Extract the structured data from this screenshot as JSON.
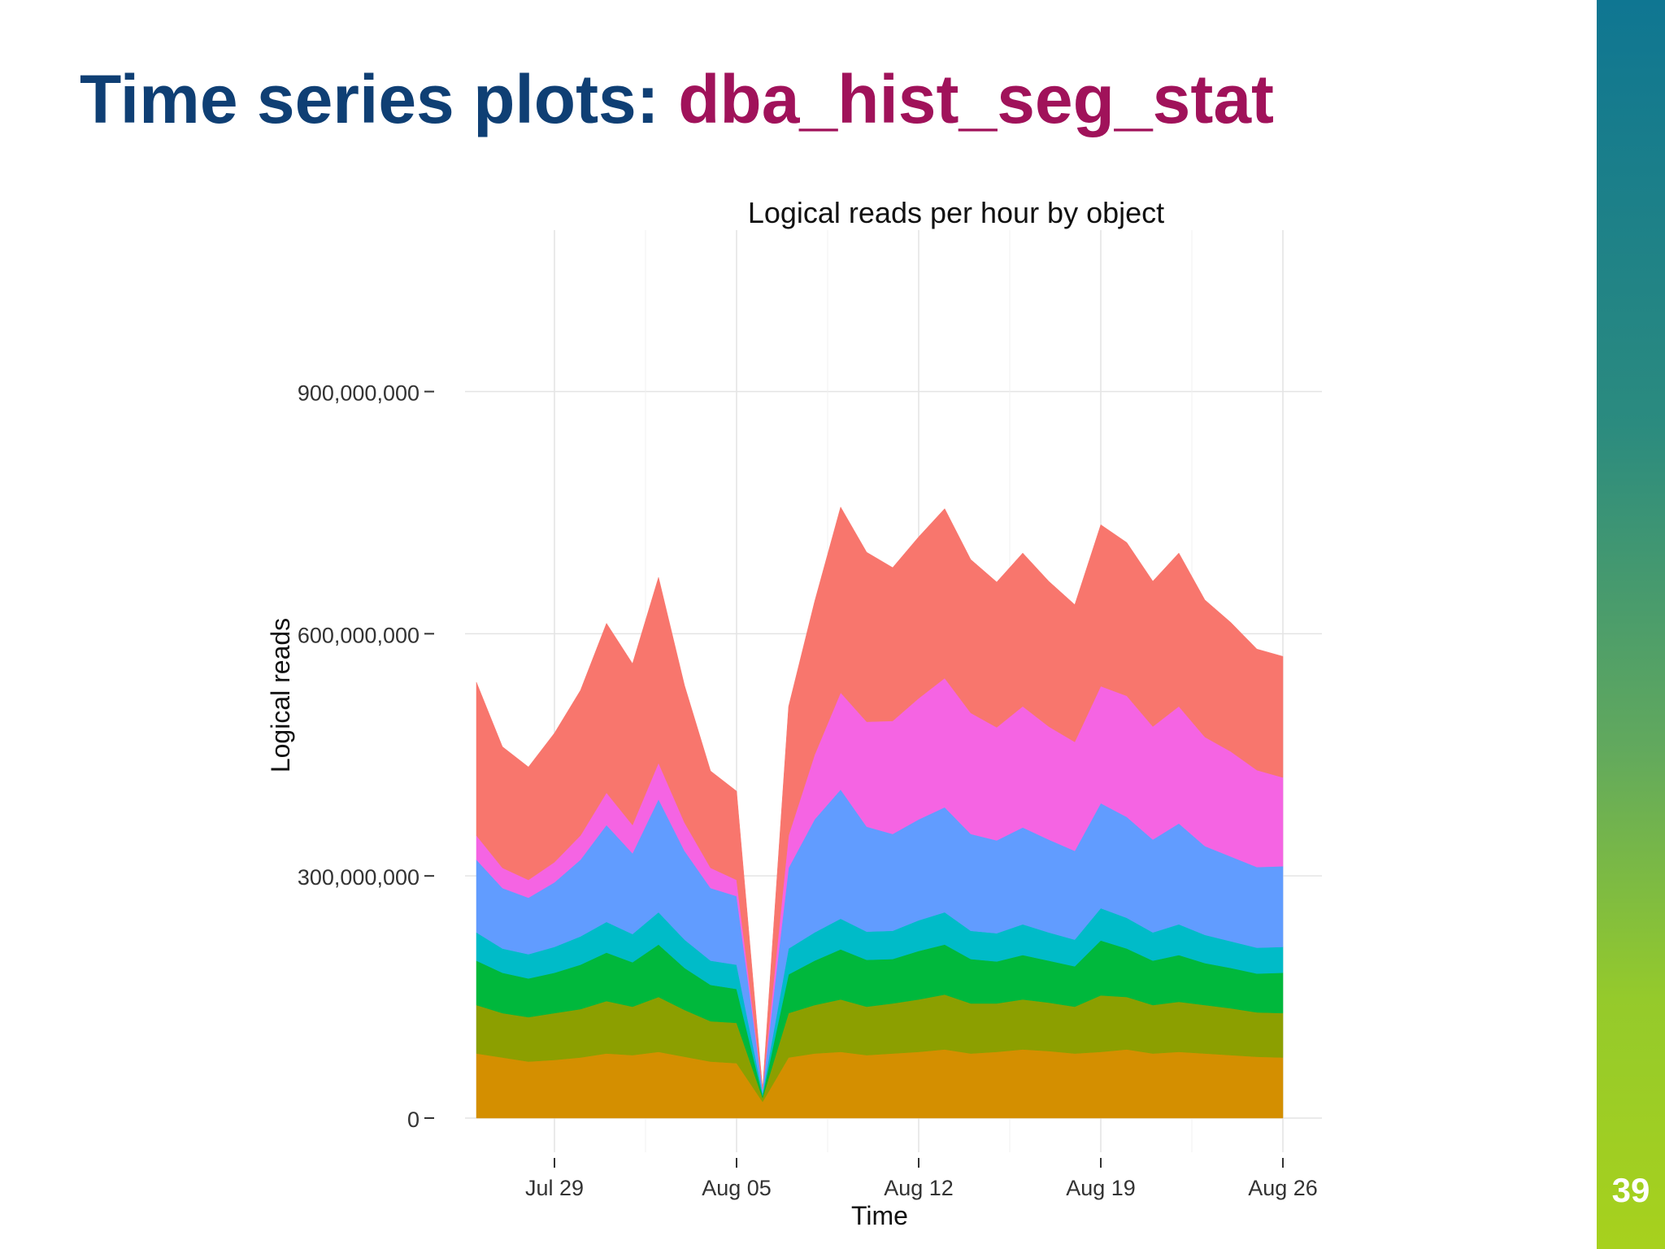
{
  "slide": {
    "title_main": "Time series plots: ",
    "title_highlight": "dba_hist_seg_stat",
    "page_number": "39"
  },
  "colors": {
    "title_main": "#0f3f74",
    "title_highlight": "#a0125a",
    "side_bar_top": "#0f7692",
    "side_bar_bottom": "#a7d11d"
  },
  "chart_data": {
    "type": "area",
    "title": "Logical reads per hour by object",
    "xlabel": "Time",
    "ylabel": "Logical reads",
    "stacked": true,
    "grid": true,
    "legend": "none",
    "x_ticks": [
      "Jul 29",
      "Aug 05",
      "Aug 12",
      "Aug 19",
      "Aug 26"
    ],
    "y_ticks": [
      "0",
      "300,000,000",
      "600,000,000",
      "900,000,000"
    ],
    "ylim": [
      0,
      1100000000
    ],
    "x": [
      "Jul 26",
      "Jul 27",
      "Jul 28",
      "Jul 29",
      "Jul 30",
      "Jul 31",
      "Aug 01",
      "Aug 02",
      "Aug 03",
      "Aug 04",
      "Aug 05",
      "Aug 06",
      "Aug 07",
      "Aug 08",
      "Aug 09",
      "Aug 10",
      "Aug 11",
      "Aug 12",
      "Aug 13",
      "Aug 14",
      "Aug 15",
      "Aug 16",
      "Aug 17",
      "Aug 18",
      "Aug 19",
      "Aug 20",
      "Aug 21",
      "Aug 22",
      "Aug 23",
      "Aug 24",
      "Aug 25",
      "Aug 26"
    ],
    "series": [
      {
        "color": "#d48f00",
        "values": [
          80000000,
          75000000,
          70000000,
          72000000,
          75000000,
          80000000,
          78000000,
          82000000,
          76000000,
          70000000,
          68000000,
          20000000,
          75000000,
          80000000,
          82000000,
          78000000,
          80000000,
          82000000,
          85000000,
          80000000,
          82000000,
          85000000,
          83000000,
          80000000,
          82000000,
          85000000,
          80000000,
          82000000,
          80000000,
          78000000,
          76000000,
          75000000
        ]
      },
      {
        "color": "#8c9f00",
        "values": [
          60000000,
          55000000,
          55000000,
          58000000,
          60000000,
          65000000,
          60000000,
          68000000,
          58000000,
          50000000,
          50000000,
          5000000,
          55000000,
          60000000,
          65000000,
          60000000,
          62000000,
          65000000,
          68000000,
          62000000,
          60000000,
          62000000,
          60000000,
          58000000,
          70000000,
          65000000,
          60000000,
          62000000,
          60000000,
          58000000,
          55000000,
          55000000
        ]
      },
      {
        "color": "#00b83c",
        "values": [
          55000000,
          50000000,
          48000000,
          50000000,
          55000000,
          60000000,
          55000000,
          65000000,
          52000000,
          45000000,
          42000000,
          3000000,
          48000000,
          55000000,
          62000000,
          58000000,
          55000000,
          60000000,
          62000000,
          55000000,
          52000000,
          55000000,
          52000000,
          50000000,
          68000000,
          60000000,
          55000000,
          58000000,
          52000000,
          50000000,
          48000000,
          50000000
        ]
      },
      {
        "color": "#00bbc8",
        "values": [
          35000000,
          30000000,
          30000000,
          32000000,
          35000000,
          38000000,
          35000000,
          40000000,
          35000000,
          30000000,
          30000000,
          3000000,
          32000000,
          35000000,
          38000000,
          35000000,
          35000000,
          38000000,
          40000000,
          35000000,
          35000000,
          38000000,
          35000000,
          33000000,
          40000000,
          38000000,
          35000000,
          38000000,
          35000000,
          33000000,
          32000000,
          32000000
        ]
      },
      {
        "color": "#619cff",
        "values": [
          90000000,
          75000000,
          70000000,
          80000000,
          95000000,
          120000000,
          100000000,
          140000000,
          110000000,
          90000000,
          85000000,
          5000000,
          100000000,
          140000000,
          160000000,
          130000000,
          120000000,
          125000000,
          130000000,
          120000000,
          115000000,
          120000000,
          115000000,
          110000000,
          130000000,
          125000000,
          115000000,
          125000000,
          110000000,
          105000000,
          100000000,
          100000000
        ]
      },
      {
        "color": "#f564e3",
        "values": [
          30000000,
          25000000,
          22000000,
          25000000,
          30000000,
          40000000,
          35000000,
          45000000,
          35000000,
          25000000,
          20000000,
          0,
          40000000,
          80000000,
          120000000,
          130000000,
          140000000,
          150000000,
          160000000,
          150000000,
          140000000,
          150000000,
          140000000,
          135000000,
          145000000,
          150000000,
          140000000,
          145000000,
          135000000,
          130000000,
          120000000,
          110000000
        ]
      },
      {
        "color": "#f8766d",
        "values": [
          190000000,
          150000000,
          140000000,
          160000000,
          180000000,
          210000000,
          200000000,
          230000000,
          170000000,
          120000000,
          110000000,
          0,
          160000000,
          190000000,
          230000000,
          210000000,
          190000000,
          200000000,
          210000000,
          190000000,
          180000000,
          190000000,
          180000000,
          170000000,
          200000000,
          190000000,
          180000000,
          190000000,
          170000000,
          160000000,
          150000000,
          150000000
        ]
      }
    ]
  }
}
